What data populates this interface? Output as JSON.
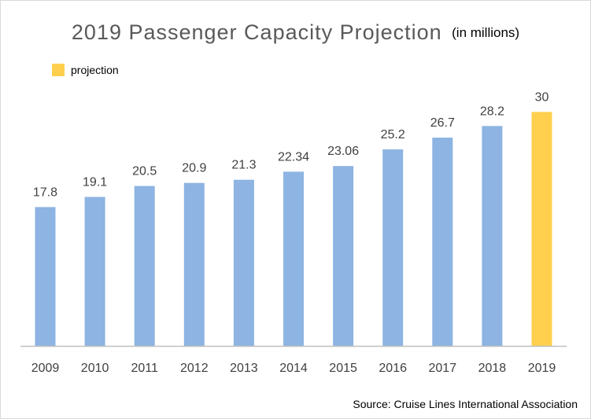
{
  "chart_data": {
    "type": "bar",
    "title": "2019 Passenger Capacity Projection",
    "subtitle": "(in millions)",
    "categories": [
      "2009",
      "2010",
      "2011",
      "2012",
      "2013",
      "2014",
      "2015",
      "2016",
      "2017",
      "2018",
      "2019"
    ],
    "values": [
      17.8,
      19.1,
      20.5,
      20.9,
      21.3,
      22.34,
      23.06,
      25.2,
      26.7,
      28.2,
      30
    ],
    "value_labels": [
      "17.8",
      "19.1",
      "20.5",
      "20.9",
      "21.3",
      "22.34",
      "23.06",
      "25.2",
      "26.7",
      "28.2",
      "30"
    ],
    "projection_index": 10,
    "xlabel": "",
    "ylabel": "",
    "ylim": [
      0,
      36
    ],
    "grid": false,
    "legend": {
      "label": "projection",
      "placement": "top-left"
    },
    "colors": {
      "actual": "#8db4e2",
      "projection": "#ffd04d",
      "axis": "#bfbfbf",
      "label": "#404040"
    },
    "source": "Source: Cruise Lines International Association"
  }
}
